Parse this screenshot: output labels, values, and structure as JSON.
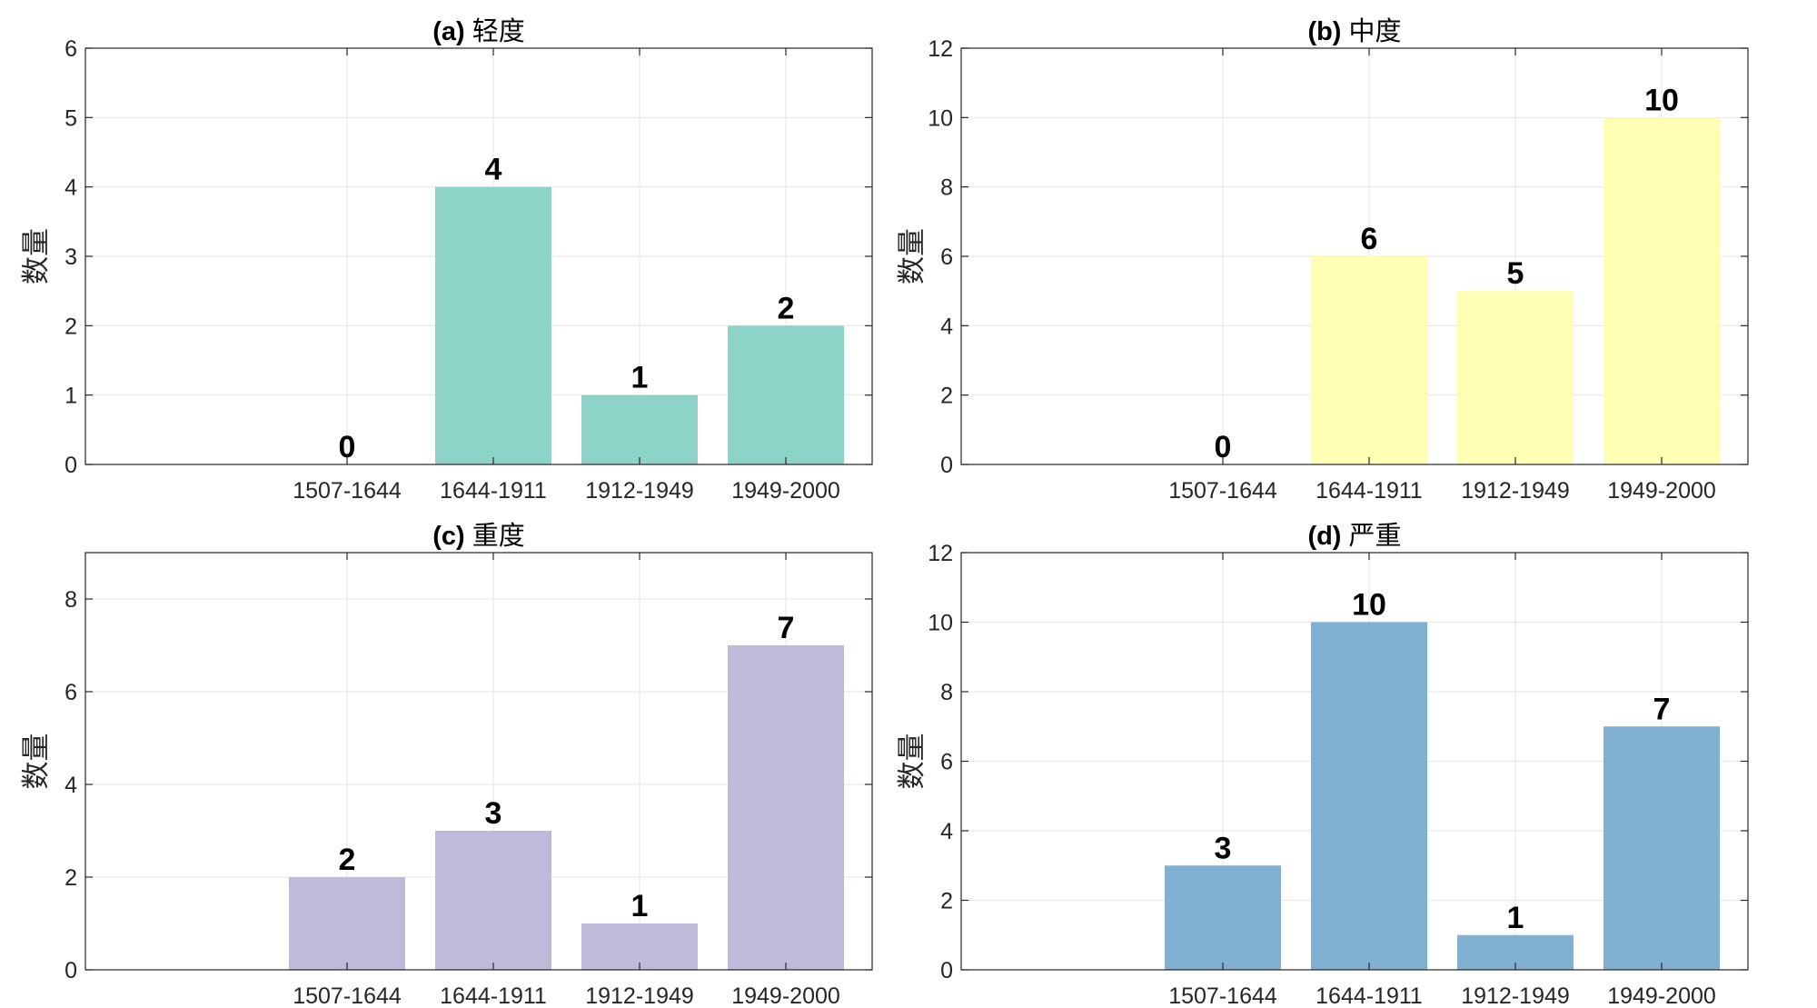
{
  "chart_data": [
    {
      "type": "bar",
      "title_prefix": "(a)",
      "title_text": "轻度",
      "title": "(a) 轻度",
      "ylabel": "数量",
      "xlabel": "",
      "categories": [
        "1507-1644",
        "1644-1911",
        "1912-1949",
        "1949-2000"
      ],
      "values": [
        0,
        4,
        1,
        2
      ],
      "data_labels": [
        "0",
        "4",
        "1",
        "2"
      ],
      "ylim": [
        0,
        6
      ],
      "yticks": [
        0,
        1,
        2,
        3,
        4,
        5,
        6
      ],
      "color": "#8ED3C7",
      "grid": true
    },
    {
      "type": "bar",
      "title_prefix": "(b)",
      "title_text": "中度",
      "title": "(b) 中度",
      "ylabel": "数量",
      "xlabel": "",
      "categories": [
        "1507-1644",
        "1644-1911",
        "1912-1949",
        "1949-2000"
      ],
      "values": [
        0,
        6,
        5,
        10
      ],
      "data_labels": [
        "0",
        "6",
        "5",
        "10"
      ],
      "ylim": [
        0,
        12
      ],
      "yticks": [
        0,
        2,
        4,
        6,
        8,
        10,
        12
      ],
      "color": "#FFFFB3",
      "grid": true
    },
    {
      "type": "bar",
      "title_prefix": "(c)",
      "title_text": "重度",
      "title": "(c) 重度",
      "ylabel": "数量",
      "xlabel": "",
      "categories": [
        "1507-1644",
        "1644-1911",
        "1912-1949",
        "1949-2000"
      ],
      "values": [
        2,
        3,
        1,
        7
      ],
      "data_labels": [
        "2",
        "3",
        "1",
        "7"
      ],
      "ylim": [
        0,
        9
      ],
      "yticks": [
        0,
        2,
        4,
        6,
        8
      ],
      "color": "#BEBADA",
      "grid": true
    },
    {
      "type": "bar",
      "title_prefix": "(d)",
      "title_text": "严重",
      "title": "(d) 严重",
      "ylabel": "数量",
      "xlabel": "",
      "categories": [
        "1507-1644",
        "1644-1911",
        "1912-1949",
        "1949-2000"
      ],
      "values": [
        3,
        10,
        1,
        7
      ],
      "data_labels": [
        "3",
        "10",
        "1",
        "7"
      ],
      "ylim": [
        0,
        12
      ],
      "yticks": [
        0,
        2,
        4,
        6,
        8,
        10,
        12
      ],
      "color": "#80B1D3",
      "grid": true
    }
  ],
  "colors": {
    "axis": "#262626",
    "grid": "#e6e6e6",
    "background": "#ffffff"
  }
}
